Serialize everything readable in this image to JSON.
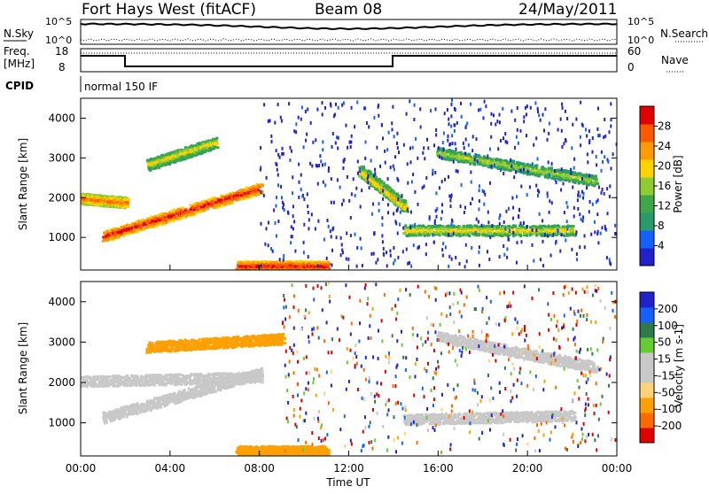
{
  "header": {
    "station": "Fort Hays West (fitACF)",
    "beam": "Beam 08",
    "date": "24/May/2011"
  },
  "strip": {
    "nsky_label": "N.Sky",
    "nsearch_label": "N.Search",
    "sky_ticks": [
      "10^5",
      "10^0"
    ],
    "search_ticks": [
      "10^5",
      "10^0"
    ],
    "freq_label_line1": "Freq.",
    "freq_label_line2": "[MHz]",
    "freq_ticks": [
      "18",
      "8"
    ],
    "nave_label": "Nave",
    "nave_ticks": [
      "60",
      "0"
    ],
    "cpid_label": "CPID",
    "cpid_text": "normal 150 IF"
  },
  "colors": {
    "power_scale": [
      "#2222cc",
      "#1560ff",
      "#2a9a6a",
      "#3fa64a",
      "#8fcc33",
      "#ffd200",
      "#ff9a00",
      "#ff5a00",
      "#e00000"
    ],
    "velocity_scale": [
      "#e00000",
      "#ff6a00",
      "#ffa000",
      "#ffd27a",
      "#c8c8c8",
      "#c8c8c8",
      "#66cc33",
      "#2e7a4a",
      "#1560ff",
      "#2222cc"
    ]
  },
  "chart_data": [
    {
      "type": "heatmap",
      "title": "Power",
      "xlabel": "Time UT",
      "ylabel": "Slant Range [km]",
      "x_ticks": [
        "00:00",
        "04:00",
        "08:00",
        "12:00",
        "16:00",
        "20:00",
        "00:00"
      ],
      "y_ticks": [
        "1000",
        "2000",
        "3000",
        "4000"
      ],
      "xlim_hours": [
        0,
        24
      ],
      "ylim_km": [
        180,
        4500
      ],
      "colorbar_label": "Power [dB]",
      "colorbar_ticks": [
        "4",
        "8",
        "12",
        "16",
        "20",
        "24",
        "28"
      ],
      "features": [
        {
          "name": "band-a",
          "from": [
            0,
            2000
          ],
          "to": [
            2,
            1900
          ],
          "level": 24,
          "note": "strong echo 00-02 UT near 2000 km"
        },
        {
          "name": "band-b",
          "from": [
            1,
            1050
          ],
          "to": [
            8,
            2250
          ],
          "level": 28,
          "note": "rising band 01-08 UT"
        },
        {
          "name": "band-c",
          "from": [
            3,
            2850
          ],
          "to": [
            6,
            3400
          ],
          "level": 18
        },
        {
          "name": "band-d",
          "from": [
            7,
            300
          ],
          "to": [
            11,
            300
          ],
          "level": 28,
          "note": "near-range scatter"
        },
        {
          "name": "band-e",
          "from": [
            12.5,
            2700
          ],
          "to": [
            14.5,
            1800
          ],
          "level": 20
        },
        {
          "name": "band-f",
          "from": [
            14.5,
            1200
          ],
          "to": [
            22,
            1200
          ],
          "level": 18
        },
        {
          "name": "band-g",
          "from": [
            16,
            3150
          ],
          "to": [
            23,
            2450
          ],
          "level": 16
        }
      ]
    },
    {
      "type": "heatmap",
      "title": "Velocity",
      "xlabel": "Time UT",
      "ylabel": "Slant Range [km]",
      "x_ticks": [
        "00:00",
        "04:00",
        "08:00",
        "12:00",
        "16:00",
        "20:00",
        "00:00"
      ],
      "y_ticks": [
        "1000",
        "2000",
        "3000",
        "4000"
      ],
      "xlim_hours": [
        0,
        24
      ],
      "ylim_km": [
        180,
        4500
      ],
      "colorbar_label": "Velocity [m s-1]",
      "colorbar_ticks": [
        "200",
        "100",
        "50",
        "15",
        "-15",
        "-50",
        "-100",
        "-200"
      ],
      "features": [
        {
          "name": "ground-scatter-a",
          "from": [
            0,
            2050
          ],
          "to": [
            8,
            2150
          ],
          "velocity": 0
        },
        {
          "name": "ground-scatter-b",
          "from": [
            1,
            1150
          ],
          "to": [
            8,
            2250
          ],
          "velocity": 0
        },
        {
          "name": "ground-scatter-c",
          "from": [
            16,
            3150
          ],
          "to": [
            23,
            2400
          ],
          "velocity": 0
        },
        {
          "name": "ground-scatter-d",
          "from": [
            14.5,
            1100
          ],
          "to": [
            22,
            1200
          ],
          "velocity": 0
        },
        {
          "name": "slow-west-a",
          "from": [
            3,
            2900
          ],
          "to": [
            9,
            3100
          ],
          "velocity": -40
        },
        {
          "name": "slow-west-b",
          "from": [
            7,
            320
          ],
          "to": [
            11,
            320
          ],
          "velocity": -60
        }
      ]
    }
  ]
}
